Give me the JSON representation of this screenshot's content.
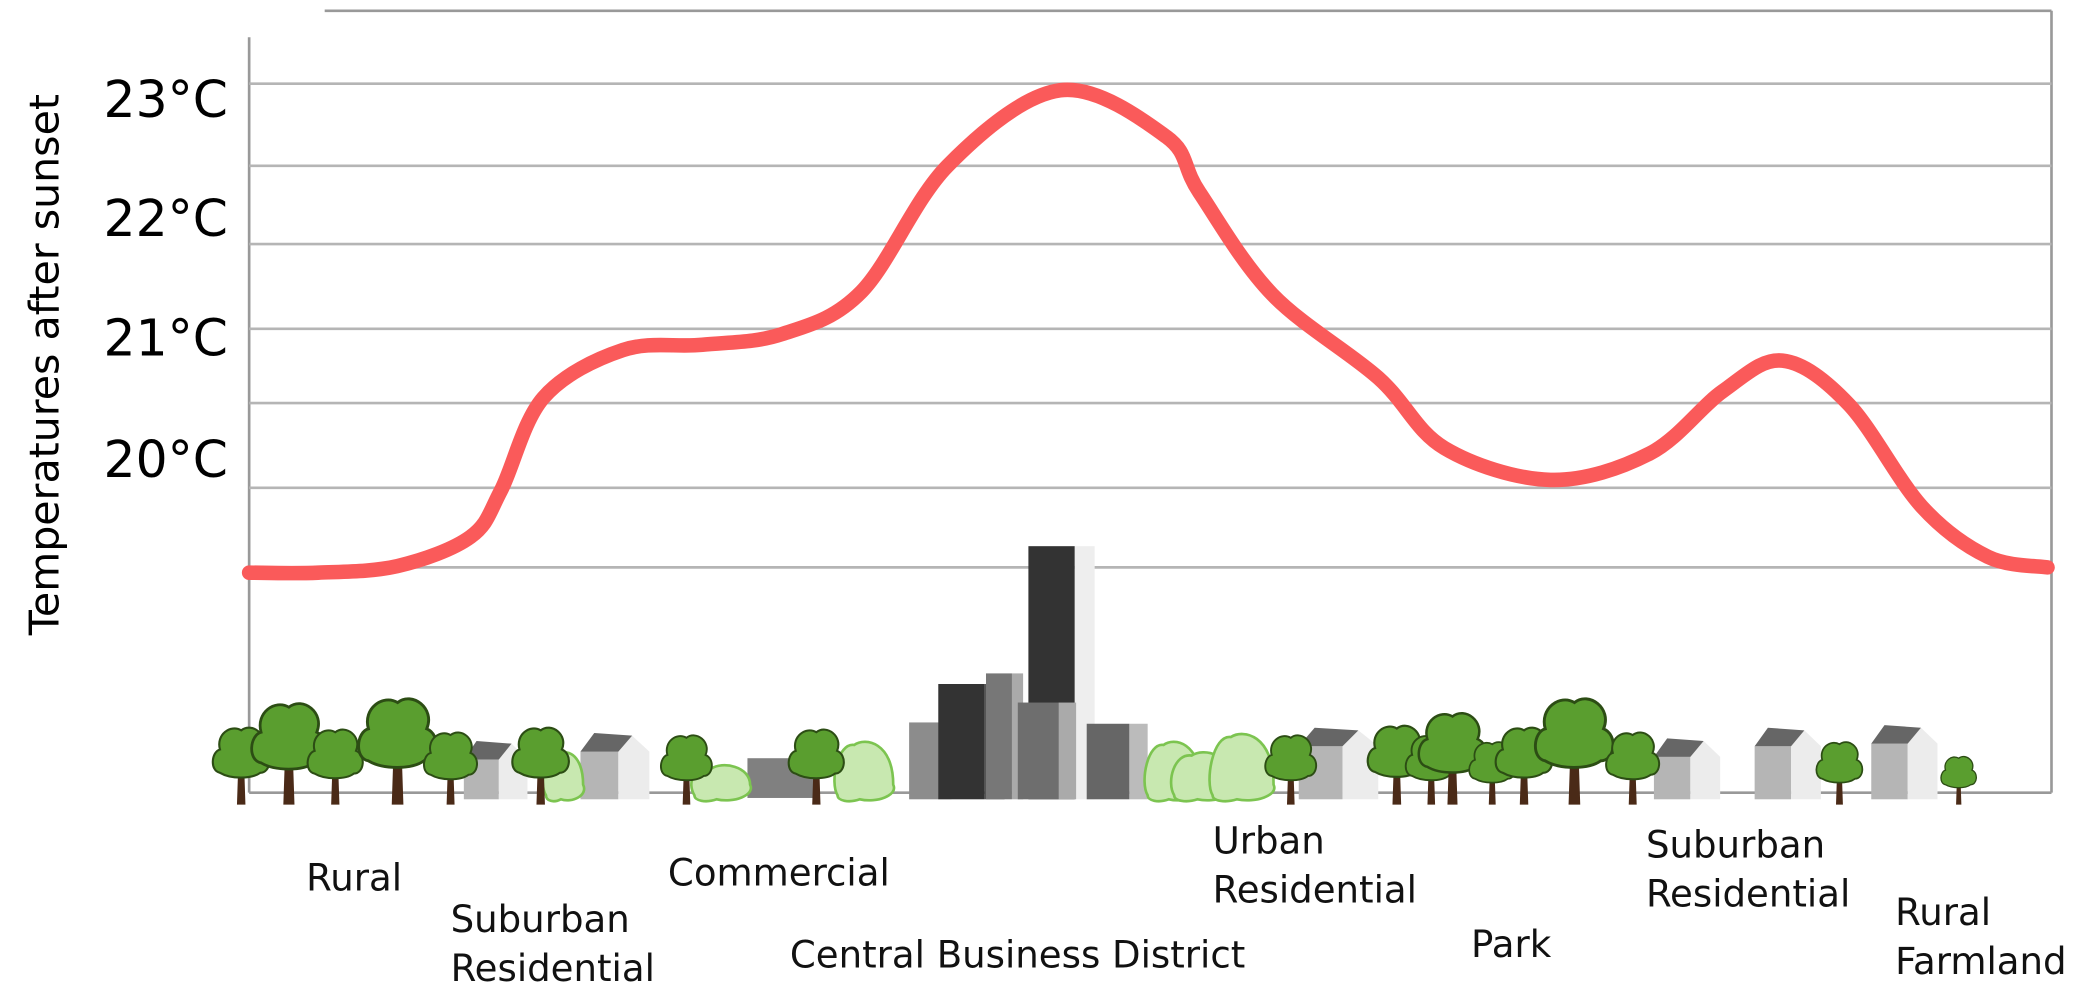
{
  "y_axis_label": "Temperatures after sunset",
  "temperature_labels": [
    "23°C",
    "22°C",
    "21°C",
    "20°C"
  ],
  "zones": [
    {
      "lines": [
        "Rural"
      ]
    },
    {
      "lines": [
        "Suburban",
        "Residential"
      ]
    },
    {
      "lines": [
        "Commercial"
      ]
    },
    {
      "lines": [
        "Central Business District"
      ]
    },
    {
      "lines": [
        "Urban",
        "Residential"
      ]
    },
    {
      "lines": [
        "Park"
      ]
    },
    {
      "lines": [
        "Suburban",
        "Residential"
      ]
    },
    {
      "lines": [
        "Rural",
        "Farmland"
      ]
    }
  ]
}
